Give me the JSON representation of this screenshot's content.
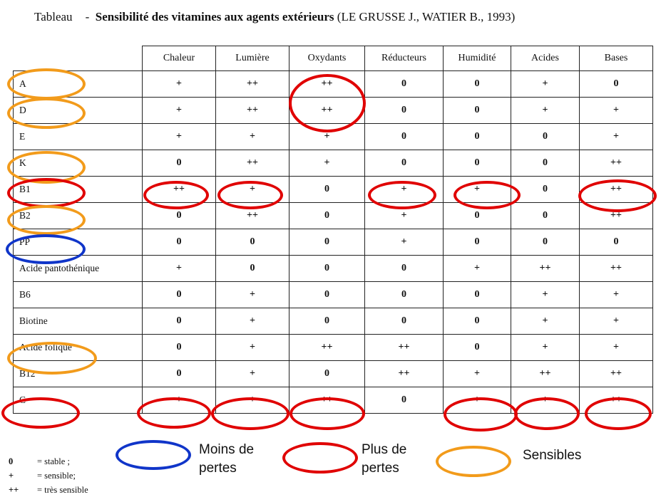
{
  "title": {
    "prefix": "Tableau",
    "dash": "-",
    "bold": "Sensibilité des vitamines aux agents extérieurs",
    "source": "(LE GRUSSE J., WATIER B., 1993)"
  },
  "table": {
    "columns": [
      "Chaleur",
      "Lumière",
      "Oxydants",
      "Réducteurs",
      "Humidité",
      "Acides",
      "Bases"
    ],
    "rows": [
      {
        "name": "A",
        "values": [
          "+",
          "++",
          "++",
          "0",
          "0",
          "+",
          "0"
        ]
      },
      {
        "name": "D",
        "values": [
          "+",
          "++",
          "++",
          "0",
          "0",
          "+",
          "+"
        ]
      },
      {
        "name": "E",
        "values": [
          "+",
          "+",
          "+",
          "0",
          "0",
          "0",
          "+"
        ]
      },
      {
        "name": "K",
        "values": [
          "0",
          "++",
          "+",
          "0",
          "0",
          "0",
          "++"
        ]
      },
      {
        "name": "B1",
        "values": [
          "++",
          "+",
          "0",
          "+",
          "+",
          "0",
          "++"
        ]
      },
      {
        "name": "B2",
        "values": [
          "0",
          "++",
          "0",
          "+",
          "0",
          "0",
          "++"
        ]
      },
      {
        "name": "PP",
        "values": [
          "0",
          "0",
          "0",
          "+",
          "0",
          "0",
          "0"
        ]
      },
      {
        "name": "Acide pantothénique",
        "values": [
          "+",
          "0",
          "0",
          "0",
          "+",
          "++",
          "++"
        ]
      },
      {
        "name": "B6",
        "values": [
          "0",
          "+",
          "0",
          "0",
          "0",
          "+",
          "+"
        ]
      },
      {
        "name": "Biotine",
        "values": [
          "0",
          "+",
          "0",
          "0",
          "0",
          "+",
          "+"
        ]
      },
      {
        "name": "Acide folique",
        "values": [
          "0",
          "+",
          "++",
          "++",
          "0",
          "+",
          "+"
        ]
      },
      {
        "name": "B12",
        "values": [
          "0",
          "+",
          "0",
          "++",
          "+",
          "++",
          "++"
        ]
      },
      {
        "name": "C",
        "values": [
          "+",
          "+",
          "++",
          "0",
          "+",
          "+",
          "++"
        ]
      }
    ]
  },
  "legend_codes": [
    {
      "symbol": "0",
      "meaning": "= stable ;"
    },
    {
      "symbol": "+",
      "meaning": "= sensible;"
    },
    {
      "symbol": "++",
      "meaning": "= très sensible"
    }
  ],
  "legend_circles": {
    "blue": {
      "label_line1": "Moins de",
      "label_line2": "pertes",
      "color": "#1035c9"
    },
    "red": {
      "label_line1": "Plus de",
      "label_line2": "pertes",
      "color": "#e00000"
    },
    "orange": {
      "label": "Sensibles",
      "color": "#f29b1b"
    }
  }
}
